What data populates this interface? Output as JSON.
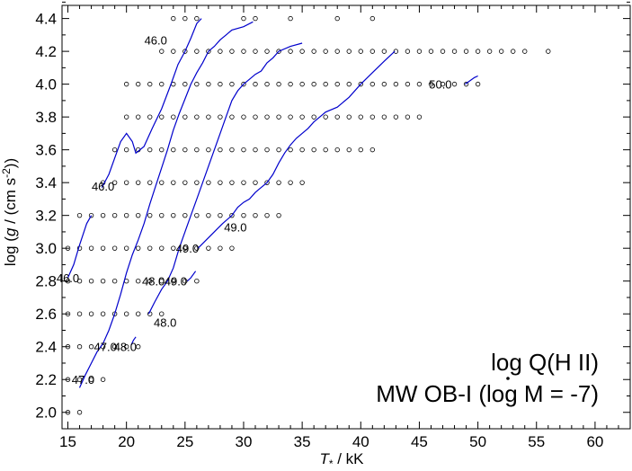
{
  "chart_data": {
    "type": "contour",
    "xlabel": {
      "prefix": "T",
      "sub": "*",
      "suffix": " / kK"
    },
    "ylabel": {
      "prefix": "log (",
      "g": "g",
      "mid": " / (cm s",
      "sup": "-2",
      "suffix": "))"
    },
    "xlim": [
      14.5,
      63.0
    ],
    "ylim": [
      1.9,
      4.48
    ],
    "xticks": [
      "15",
      "20",
      "25",
      "30",
      "35",
      "40",
      "45",
      "50",
      "55",
      "60"
    ],
    "yticks": [
      "2.0",
      "2.2",
      "2.4",
      "2.6",
      "2.8",
      "3.0",
      "3.2",
      "3.4",
      "3.6",
      "3.8",
      "4.0",
      "4.2",
      "4.4"
    ],
    "annotation_title": "log Q(H II)",
    "annotation_subtitle": {
      "prefix": "MW OB-I (log ",
      "mdot": "M",
      "suffix": " = -7)"
    },
    "line_color": "#0000cc",
    "grid_points": {
      "4.4": [
        24,
        25,
        26,
        30,
        31,
        34,
        38,
        41
      ],
      "4.2": [
        23,
        24,
        25,
        26,
        27,
        28,
        29,
        30,
        31,
        32,
        33,
        34,
        35,
        36,
        37,
        38,
        39,
        40,
        41,
        42,
        43,
        44,
        45,
        46,
        47,
        48,
        49,
        50,
        51,
        52,
        53,
        54,
        56
      ],
      "4.0": [
        20,
        21,
        22,
        23,
        24,
        25,
        26,
        27,
        28,
        29,
        30,
        31,
        32,
        33,
        34,
        35,
        36,
        37,
        38,
        39,
        40,
        41,
        42,
        43,
        44,
        45,
        46,
        47,
        48,
        49,
        50
      ],
      "3.8": [
        20,
        21,
        22,
        23,
        24,
        25,
        26,
        27,
        28,
        29,
        30,
        31,
        32,
        33,
        34,
        35,
        36,
        37,
        38,
        39,
        40,
        41,
        42,
        43,
        44,
        45
      ],
      "3.6": [
        19,
        20,
        21,
        22,
        23,
        24,
        25,
        26,
        27,
        28,
        29,
        30,
        31,
        32,
        33,
        34,
        35,
        36,
        37,
        38,
        39,
        40,
        41
      ],
      "3.4": [
        18,
        19,
        20,
        21,
        22,
        23,
        24,
        25,
        26,
        27,
        28,
        29,
        30,
        31,
        32,
        33,
        34,
        35
      ],
      "3.2": [
        16,
        17,
        18,
        19,
        20,
        21,
        22,
        23,
        24,
        25,
        26,
        27,
        28,
        29,
        30,
        31,
        32,
        33
      ],
      "3.0": [
        15,
        16,
        17,
        18,
        19,
        20,
        21,
        22,
        23,
        24,
        25,
        26,
        27,
        28,
        29
      ],
      "2.8": [
        15,
        16,
        17,
        18,
        19,
        20,
        21,
        22,
        23,
        24,
        25,
        26
      ],
      "2.6": [
        15,
        16,
        17,
        18,
        19,
        20,
        21,
        22,
        23
      ],
      "2.4": [
        15,
        16,
        17,
        18,
        19,
        20,
        21
      ],
      "2.2": [
        15,
        16,
        17,
        18
      ],
      "2.0": [
        15,
        16
      ]
    },
    "contours": [
      {
        "level": "46.0",
        "segments": [
          [
            [
              15.0,
              2.82
            ],
            [
              15.5,
              2.9
            ],
            [
              16.0,
              3.02
            ],
            [
              16.6,
              3.15
            ],
            [
              17.0,
              3.2
            ]
          ],
          [
            [
              17.9,
              3.37
            ],
            [
              18.5,
              3.45
            ],
            [
              19.0,
              3.55
            ],
            [
              19.5,
              3.65
            ],
            [
              20.0,
              3.7
            ],
            [
              20.5,
              3.65
            ],
            [
              20.8,
              3.58
            ],
            [
              21.5,
              3.62
            ],
            [
              22.2,
              3.73
            ],
            [
              23.0,
              3.85
            ],
            [
              23.8,
              4.0
            ],
            [
              24.4,
              4.12
            ],
            [
              25.0,
              4.2
            ],
            [
              25.5,
              4.28
            ],
            [
              26.0,
              4.37
            ],
            [
              26.4,
              4.4
            ]
          ]
        ],
        "labels": [
          [
            46.0,
            15.0,
            2.82
          ],
          [
            46.0,
            18.0,
            3.38
          ],
          [
            46.0,
            22.5,
            4.27
          ]
        ]
      },
      {
        "level": "47.0",
        "segments": [
          [
            [
              16.0,
              2.15
            ],
            [
              16.5,
              2.23
            ],
            [
              17.0,
              2.3
            ],
            [
              17.5,
              2.37
            ],
            [
              18.0,
              2.42
            ],
            [
              18.5,
              2.5
            ],
            [
              19.0,
              2.6
            ],
            [
              19.5,
              2.72
            ],
            [
              20.0,
              2.85
            ],
            [
              20.5,
              2.96
            ],
            [
              21.0,
              3.05
            ],
            [
              21.5,
              3.15
            ],
            [
              22.0,
              3.27
            ],
            [
              22.5,
              3.38
            ],
            [
              23.0,
              3.49
            ],
            [
              23.5,
              3.6
            ],
            [
              24.0,
              3.72
            ],
            [
              24.5,
              3.82
            ],
            [
              25.0,
              3.91
            ],
            [
              25.5,
              4.0
            ],
            [
              26.0,
              4.07
            ],
            [
              26.5,
              4.13
            ],
            [
              27.0,
              4.2
            ],
            [
              27.5,
              4.23
            ],
            [
              28.0,
              4.27
            ],
            [
              28.5,
              4.3
            ],
            [
              29.0,
              4.33
            ],
            [
              30.0,
              4.35
            ],
            [
              30.8,
              4.38
            ]
          ]
        ],
        "labels": [
          [
            47.0,
            16.3,
            2.2
          ],
          [
            47.0,
            18.2,
            2.4
          ]
        ]
      },
      {
        "level": "48.0",
        "segments": [
          [
            [
              20.4,
              2.41
            ],
            [
              20.6,
              2.44
            ],
            [
              20.8,
              2.46
            ]
          ],
          [
            [
              21.9,
              2.6
            ],
            [
              22.4,
              2.67
            ],
            [
              23.0,
              2.75
            ],
            [
              23.5,
              2.8
            ],
            [
              24.0,
              2.88
            ],
            [
              24.5,
              3.0
            ],
            [
              25.0,
              3.1
            ],
            [
              25.5,
              3.2
            ],
            [
              26.0,
              3.3
            ],
            [
              26.5,
              3.4
            ],
            [
              27.0,
              3.5
            ],
            [
              27.5,
              3.6
            ],
            [
              28.0,
              3.7
            ],
            [
              28.5,
              3.8
            ],
            [
              29.0,
              3.9
            ],
            [
              29.5,
              3.96
            ],
            [
              30.0,
              4.0
            ],
            [
              30.5,
              4.03
            ],
            [
              31.0,
              4.06
            ],
            [
              31.5,
              4.08
            ],
            [
              32.0,
              4.13
            ],
            [
              32.5,
              4.16
            ],
            [
              33.0,
              4.2
            ],
            [
              34.0,
              4.23
            ],
            [
              35.0,
              4.25
            ]
          ]
        ],
        "labels": [
          [
            48.0,
            19.9,
            2.4
          ],
          [
            48.0,
            23.3,
            2.55
          ],
          [
            48.0,
            22.3,
            2.8
          ]
        ]
      },
      {
        "level": "49.0",
        "segments": [
          [
            [
              25.2,
              2.8
            ],
            [
              25.5,
              2.82
            ],
            [
              25.9,
              2.86
            ]
          ],
          [
            [
              26.1,
              3.0
            ],
            [
              26.8,
              3.05
            ],
            [
              27.5,
              3.1
            ],
            [
              28.2,
              3.15
            ],
            [
              29.0,
              3.2
            ],
            [
              29.5,
              3.25
            ],
            [
              30.0,
              3.28
            ],
            [
              30.5,
              3.3
            ],
            [
              31.0,
              3.34
            ],
            [
              31.5,
              3.37
            ],
            [
              32.0,
              3.4
            ],
            [
              32.5,
              3.45
            ],
            [
              33.0,
              3.52
            ],
            [
              33.5,
              3.58
            ],
            [
              34.0,
              3.63
            ],
            [
              34.5,
              3.67
            ],
            [
              35.0,
              3.7
            ],
            [
              35.5,
              3.73
            ],
            [
              36.0,
              3.77
            ],
            [
              37.0,
              3.83
            ],
            [
              38.0,
              3.86
            ],
            [
              39.0,
              3.92
            ],
            [
              40.0,
              4.0
            ],
            [
              41.0,
              4.07
            ],
            [
              42.0,
              4.14
            ],
            [
              42.9,
              4.2
            ]
          ]
        ],
        "labels": [
          [
            49.0,
            24.2,
            2.8
          ],
          [
            49.0,
            25.2,
            3.0
          ],
          [
            49.0,
            29.3,
            3.13
          ]
        ]
      },
      {
        "level": "50.0",
        "segments": [
          [
            [
              48.9,
              4.0
            ],
            [
              49.3,
              4.02
            ],
            [
              49.7,
              4.04
            ],
            [
              50.0,
              4.05
            ]
          ]
        ],
        "labels": [
          [
            50.0,
            46.8,
            4.0
          ]
        ]
      }
    ]
  }
}
